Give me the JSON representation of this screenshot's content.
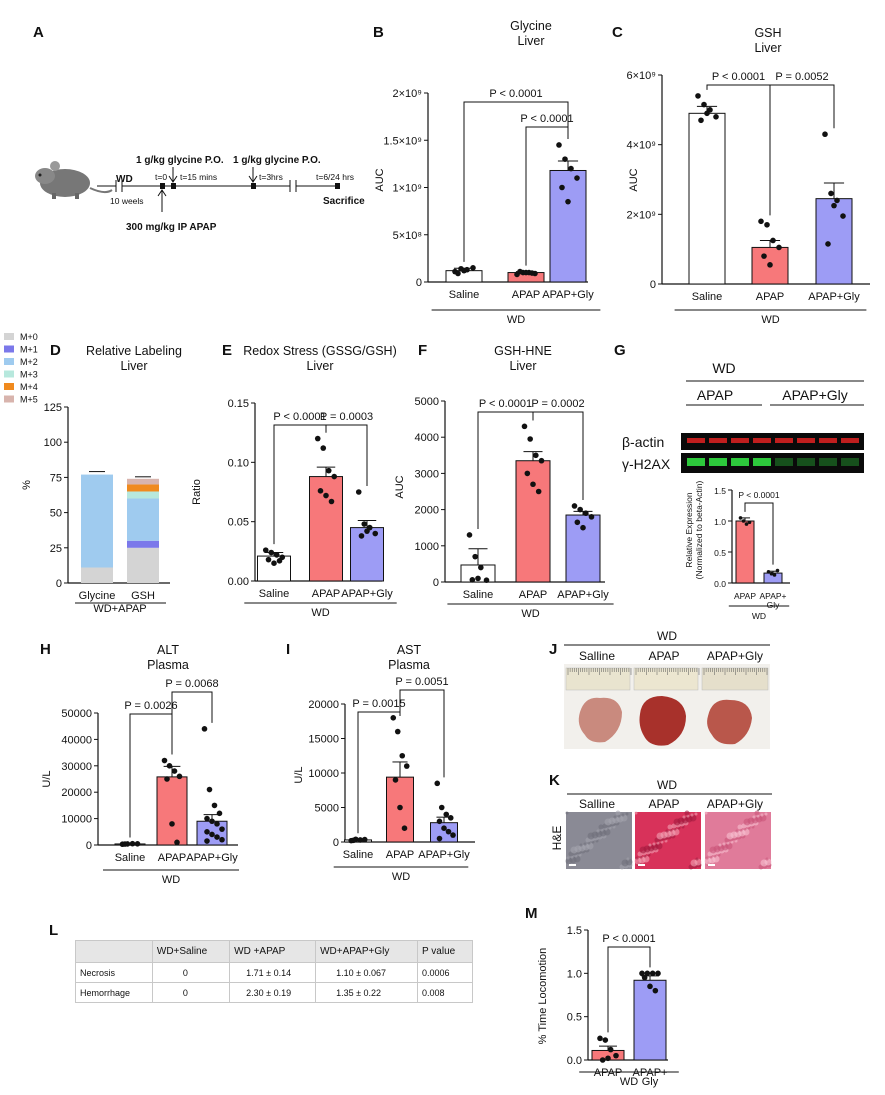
{
  "colors": {
    "saline": "#ffffff",
    "apap": "#f7787a",
    "gly": "#9d9cf5",
    "m0": "#d4d4d4",
    "m1": "#7b78ea",
    "m2": "#9fcbef",
    "m3": "#b7e8dd",
    "m4": "#f08a1e",
    "m5": "#d8b4ad",
    "western_red": "#e02222",
    "western_green": "#2fd43f",
    "he_saline": "#8a8a95",
    "he_apap": "#d8325a",
    "he_gly": "#e07b9a"
  },
  "panels": {
    "A": "A",
    "B": "B",
    "C": "C",
    "D": "D",
    "E": "E",
    "F": "F",
    "G": "G",
    "H": "H",
    "I": "I",
    "J": "J",
    "K": "K",
    "L": "L",
    "M": "M"
  },
  "schematic": {
    "wd": "WD",
    "weeks": "10 weels",
    "dose1": "1 g/kg glycine P.O.",
    "dose2": "1 g/kg glycine P.O.",
    "t0": "t=0",
    "t15": "t=15 mins",
    "t3": "t=3hrs",
    "tend": "t=6/24 hrs",
    "sacrifice": "Sacrifice",
    "apap": "300 mg/kg IP APAP"
  },
  "chart_data": [
    {
      "id": "B",
      "type": "bar",
      "title": "Glycine\nLiver",
      "ylabel": "AUC",
      "group": "WD",
      "categories": [
        "Saline",
        "APAP",
        "APAP+Gly"
      ],
      "values": [
        120000000.0,
        100000000.0,
        1180000000.0
      ],
      "errors": [
        25000000.0,
        10000000.0,
        100000000.0
      ],
      "points": [
        [
          110000000.0,
          140000000.0,
          130000000.0,
          150000000.0,
          90000000.0,
          120000000.0
        ],
        [
          80000000.0,
          100000000.0,
          100000000.0,
          90000000.0,
          110000000.0,
          100000000.0,
          95000000.0
        ],
        [
          1450000000.0,
          1300000000.0,
          1200000000.0,
          1100000000.0,
          1000000000.0,
          850000000.0
        ]
      ],
      "ylim": [
        0,
        2000000000.0
      ],
      "yticks": [
        0,
        500000000.0,
        1000000000.0,
        1500000000.0,
        2000000000.0
      ],
      "yticklabels": [
        "0",
        "5×10⁸",
        "1×10⁹",
        "1.5×10⁹",
        "2×10⁹"
      ],
      "annotations": [
        {
          "a": 0,
          "b": 2,
          "text": "P < 0.0001"
        },
        {
          "a": 1,
          "b": 2,
          "text": "P < 0.0001"
        }
      ]
    },
    {
      "id": "C",
      "type": "bar",
      "title": "GSH\nLiver",
      "ylabel": "AUC",
      "group": "WD",
      "categories": [
        "Saline",
        "APAP",
        "APAP+Gly"
      ],
      "values": [
        4900000000.0,
        1050000000.0,
        2450000000.0
      ],
      "errors": [
        200000000.0,
        200000000.0,
        450000000.0
      ],
      "points": [
        [
          5400000000.0,
          5150000000.0,
          5000000000.0,
          4800000000.0,
          4700000000.0,
          4900000000.0
        ],
        [
          1800000000.0,
          1700000000.0,
          1250000000.0,
          1050000000.0,
          800000000.0,
          550000000.0
        ],
        [
          4300000000.0,
          2600000000.0,
          2400000000.0,
          1950000000.0,
          1150000000.0,
          2250000000.0
        ]
      ],
      "ylim": [
        0,
        6000000000.0
      ],
      "yticks": [
        0,
        2000000000.0,
        4000000000.0,
        6000000000.0
      ],
      "yticklabels": [
        "0",
        "2×10⁹",
        "4×10⁹",
        "6×10⁹"
      ],
      "annotations": [
        {
          "a": 0,
          "b": 1,
          "text": "P < 0.0001"
        },
        {
          "a": 1,
          "b": 2,
          "text": "P = 0.0052"
        }
      ]
    },
    {
      "id": "D",
      "type": "stacked_bar",
      "title": "Relative Labeling\nLiver",
      "ylabel": "%",
      "group": "WD+APAP",
      "categories": [
        "Glycine",
        "GSH"
      ],
      "legend": [
        "M+0",
        "M+1",
        "M+2",
        "M+3",
        "M+4",
        "M+5"
      ],
      "series": [
        {
          "name": "M+0",
          "values": [
            11,
            25
          ]
        },
        {
          "name": "M+1",
          "values": [
            0,
            5
          ]
        },
        {
          "name": "M+2",
          "values": [
            66,
            30
          ]
        },
        {
          "name": "M+3",
          "values": [
            0,
            5
          ]
        },
        {
          "name": "M+4",
          "values": [
            0,
            5
          ]
        },
        {
          "name": "M+5",
          "values": [
            0,
            4
          ]
        }
      ],
      "ylim": [
        0,
        125
      ],
      "yticks": [
        0,
        25,
        50,
        75,
        100,
        125
      ]
    },
    {
      "id": "E",
      "type": "bar",
      "title": "Redox Stress (GSSG/GSH)\nLiver",
      "ylabel": "Ratio",
      "group": "WD",
      "categories": [
        "Saline",
        "APAP",
        "APAP+Gly"
      ],
      "values": [
        0.021,
        0.088,
        0.045
      ],
      "errors": [
        0.003,
        0.008,
        0.006
      ],
      "points": [
        [
          0.026,
          0.024,
          0.022,
          0.02,
          0.018,
          0.015,
          0.017
        ],
        [
          0.12,
          0.112,
          0.093,
          0.088,
          0.076,
          0.072,
          0.067
        ],
        [
          0.075,
          0.048,
          0.045,
          0.04,
          0.038,
          0.042
        ]
      ],
      "ylim": [
        0,
        0.15
      ],
      "yticks": [
        0,
        0.05,
        0.1,
        0.15
      ],
      "yticklabels": [
        "0.00",
        "0.05",
        "0.10",
        "0.15"
      ],
      "annotations": [
        {
          "a": 0,
          "b": 1,
          "text": "P < 0.0001"
        },
        {
          "a": 1,
          "b": 2,
          "text": "P = 0.0003"
        }
      ]
    },
    {
      "id": "F",
      "type": "bar",
      "title": "GSH-HNE\nLiver",
      "ylabel": "AUC",
      "group": "WD",
      "categories": [
        "Saline",
        "APAP",
        "APAP+Gly"
      ],
      "values": [
        470,
        3350,
        1850
      ],
      "errors": [
        450,
        250,
        100
      ],
      "points": [
        [
          1300,
          700,
          400,
          50,
          60,
          100
        ],
        [
          4300,
          3950,
          3500,
          3350,
          3000,
          2700,
          2500
        ],
        [
          2100,
          2000,
          1900,
          1800,
          1650,
          1500
        ]
      ],
      "ylim": [
        0,
        5000
      ],
      "yticks": [
        0,
        1000,
        2000,
        3000,
        4000,
        5000
      ],
      "annotations": [
        {
          "a": 0,
          "b": 1,
          "text": "P < 0.0001"
        },
        {
          "a": 1,
          "b": 2,
          "text": "P = 0.0002"
        }
      ]
    },
    {
      "id": "G",
      "type": "bar",
      "ylabel": "Relative Expression\n(Normalized to beta-Actin)",
      "group": "WD",
      "categories": [
        "APAP",
        "APAP+\nGly"
      ],
      "values": [
        1.0,
        0.16
      ],
      "errors": [
        0.05,
        0.03
      ],
      "points": [
        [
          1.05,
          1.0,
          0.95,
          0.98
        ],
        [
          0.18,
          0.15,
          0.13,
          0.2
        ]
      ],
      "ylim": [
        0,
        1.5
      ],
      "yticks": [
        0,
        0.5,
        1.0,
        1.5
      ],
      "yticklabels": [
        "0.0",
        "0.5",
        "1.0",
        "1.5"
      ],
      "annotations": [
        {
          "a": 0,
          "b": 1,
          "text": "P < 0.0001"
        }
      ]
    },
    {
      "id": "H",
      "type": "bar",
      "title": "ALT\nPlasma",
      "ylabel": "U/L",
      "group": "WD",
      "categories": [
        "Saline",
        "APAP",
        "APAP+Gly"
      ],
      "values": [
        400,
        25800,
        9000
      ],
      "errors": [
        150,
        4000,
        2500
      ],
      "points": [
        [
          300,
          400,
          500,
          450,
          350
        ],
        [
          32000,
          30000,
          28000,
          26000,
          25000,
          8000,
          1000
        ],
        [
          44000,
          21000,
          15000,
          12000,
          10000,
          9000,
          8000,
          6000,
          5000,
          4000,
          3000,
          2000,
          1500
        ]
      ],
      "ylim": [
        0,
        50000
      ],
      "yticks": [
        0,
        10000,
        20000,
        30000,
        40000,
        50000
      ],
      "annotations": [
        {
          "a": 0,
          "b": 1,
          "text": "P = 0.0026"
        },
        {
          "a": 1,
          "b": 2,
          "text": "P = 0.0068"
        }
      ]
    },
    {
      "id": "I",
      "type": "bar",
      "title": "AST\nPlasma",
      "ylabel": "U/L",
      "group": "WD",
      "categories": [
        "Saline",
        "APAP",
        "APAP+Gly"
      ],
      "values": [
        300,
        9400,
        2800
      ],
      "errors": [
        100,
        2200,
        800
      ],
      "points": [
        [
          200,
          400,
          300,
          350,
          250
        ],
        [
          18000,
          16000,
          12500,
          11000,
          9000,
          5000,
          2000
        ],
        [
          8500,
          5000,
          4000,
          3500,
          3000,
          2000,
          1500,
          1000,
          500
        ]
      ],
      "ylim": [
        0,
        20000
      ],
      "yticks": [
        0,
        5000,
        10000,
        15000,
        20000
      ],
      "annotations": [
        {
          "a": 0,
          "b": 1,
          "text": "P = 0.0015"
        },
        {
          "a": 1,
          "b": 2,
          "text": "P = 0.0051"
        }
      ]
    },
    {
      "id": "M",
      "type": "bar",
      "ylabel": "% Time Locomotion",
      "group": "WD",
      "categories": [
        "APAP",
        "APAP+\nGly"
      ],
      "values": [
        0.11,
        0.92
      ],
      "errors": [
        0.05,
        0.05
      ],
      "points": [
        [
          0.25,
          0.23,
          0.12,
          0.05,
          0.0,
          0.02
        ],
        [
          1.0,
          1.0,
          1.0,
          1.0,
          0.95,
          0.85,
          0.8
        ]
      ],
      "ylim": [
        0,
        1.5
      ],
      "yticks": [
        0,
        0.5,
        1.0,
        1.5
      ],
      "yticklabels": [
        "0.0",
        "0.5",
        "1.0",
        "1.5"
      ],
      "annotations": [
        {
          "a": 0,
          "b": 1,
          "text": "P < 0.0001"
        }
      ]
    }
  ],
  "western": {
    "group": "WD",
    "col1": "APAP",
    "col2": "APAP+Gly",
    "row1": "β-actin",
    "row2": "γ-H2AX"
  },
  "photos": {
    "group": "WD",
    "labels": [
      "Salline",
      "APAP",
      "APAP+Gly"
    ]
  },
  "histology": {
    "group": "WD",
    "labels": [
      "Salline",
      "APAP",
      "APAP+Gly"
    ],
    "stain": "H&E"
  },
  "table": {
    "headers": [
      "",
      "WD+Saline",
      "WD +APAP",
      "WD+APAP+Gly",
      "P value"
    ],
    "rows": [
      [
        "Necrosis",
        "0",
        "1.71 ± 0.14",
        "1.10 ± 0.067",
        "0.0006"
      ],
      [
        "Hemorrhage",
        "0",
        "2.30 ± 0.19",
        "1.35 ± 0.22",
        "0.008"
      ]
    ]
  }
}
